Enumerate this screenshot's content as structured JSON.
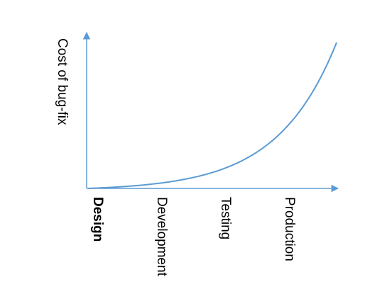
{
  "chart_data": {
    "type": "line",
    "title": "",
    "xlabel": "",
    "ylabel": "Cost of bug-fix",
    "categories": [
      "Design",
      "Development",
      "Testing",
      "Production"
    ],
    "emphasized_category": "Design",
    "axis_color": "#5b9bd5",
    "line_color": "#5b9bd5",
    "grid": false,
    "legend": "none",
    "x_tick_labels_rotated": true,
    "y_ticks": false,
    "curve": "exponential-increase"
  }
}
